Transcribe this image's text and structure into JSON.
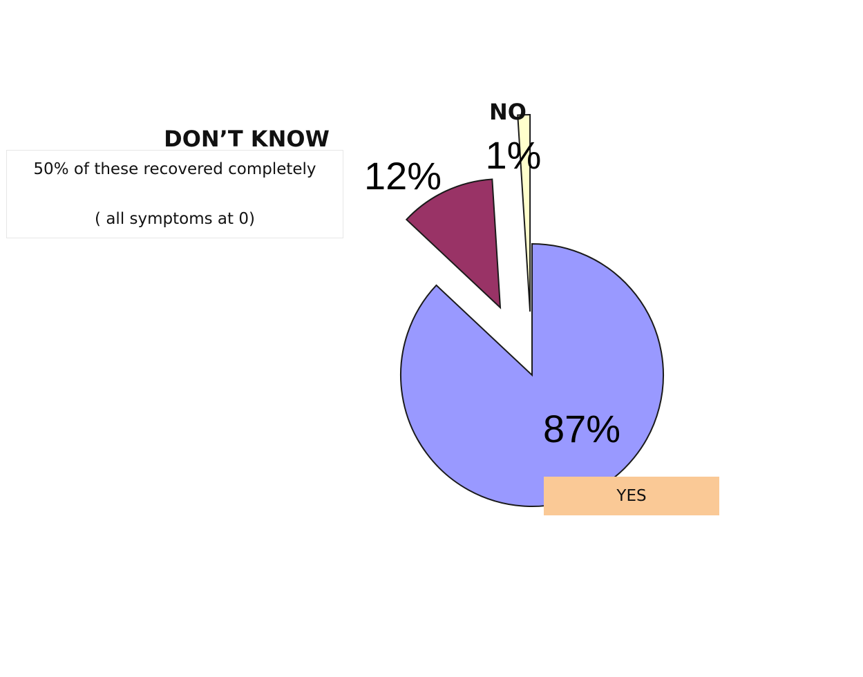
{
  "chart_data": {
    "type": "pie",
    "title": "",
    "slices": [
      {
        "label": "YES",
        "value": 87,
        "display": "87%",
        "color": "#9999ff"
      },
      {
        "label": "DON’T KNOW",
        "value": 12,
        "display": "12%",
        "color": "#993366"
      },
      {
        "label": "NO",
        "value": 1,
        "display": "1%",
        "color": "#ffffcc"
      }
    ],
    "annotations": {
      "dont_know_note": [
        "50% of these recovered completely",
        "( all symptoms at 0)"
      ]
    },
    "legend": "none"
  }
}
